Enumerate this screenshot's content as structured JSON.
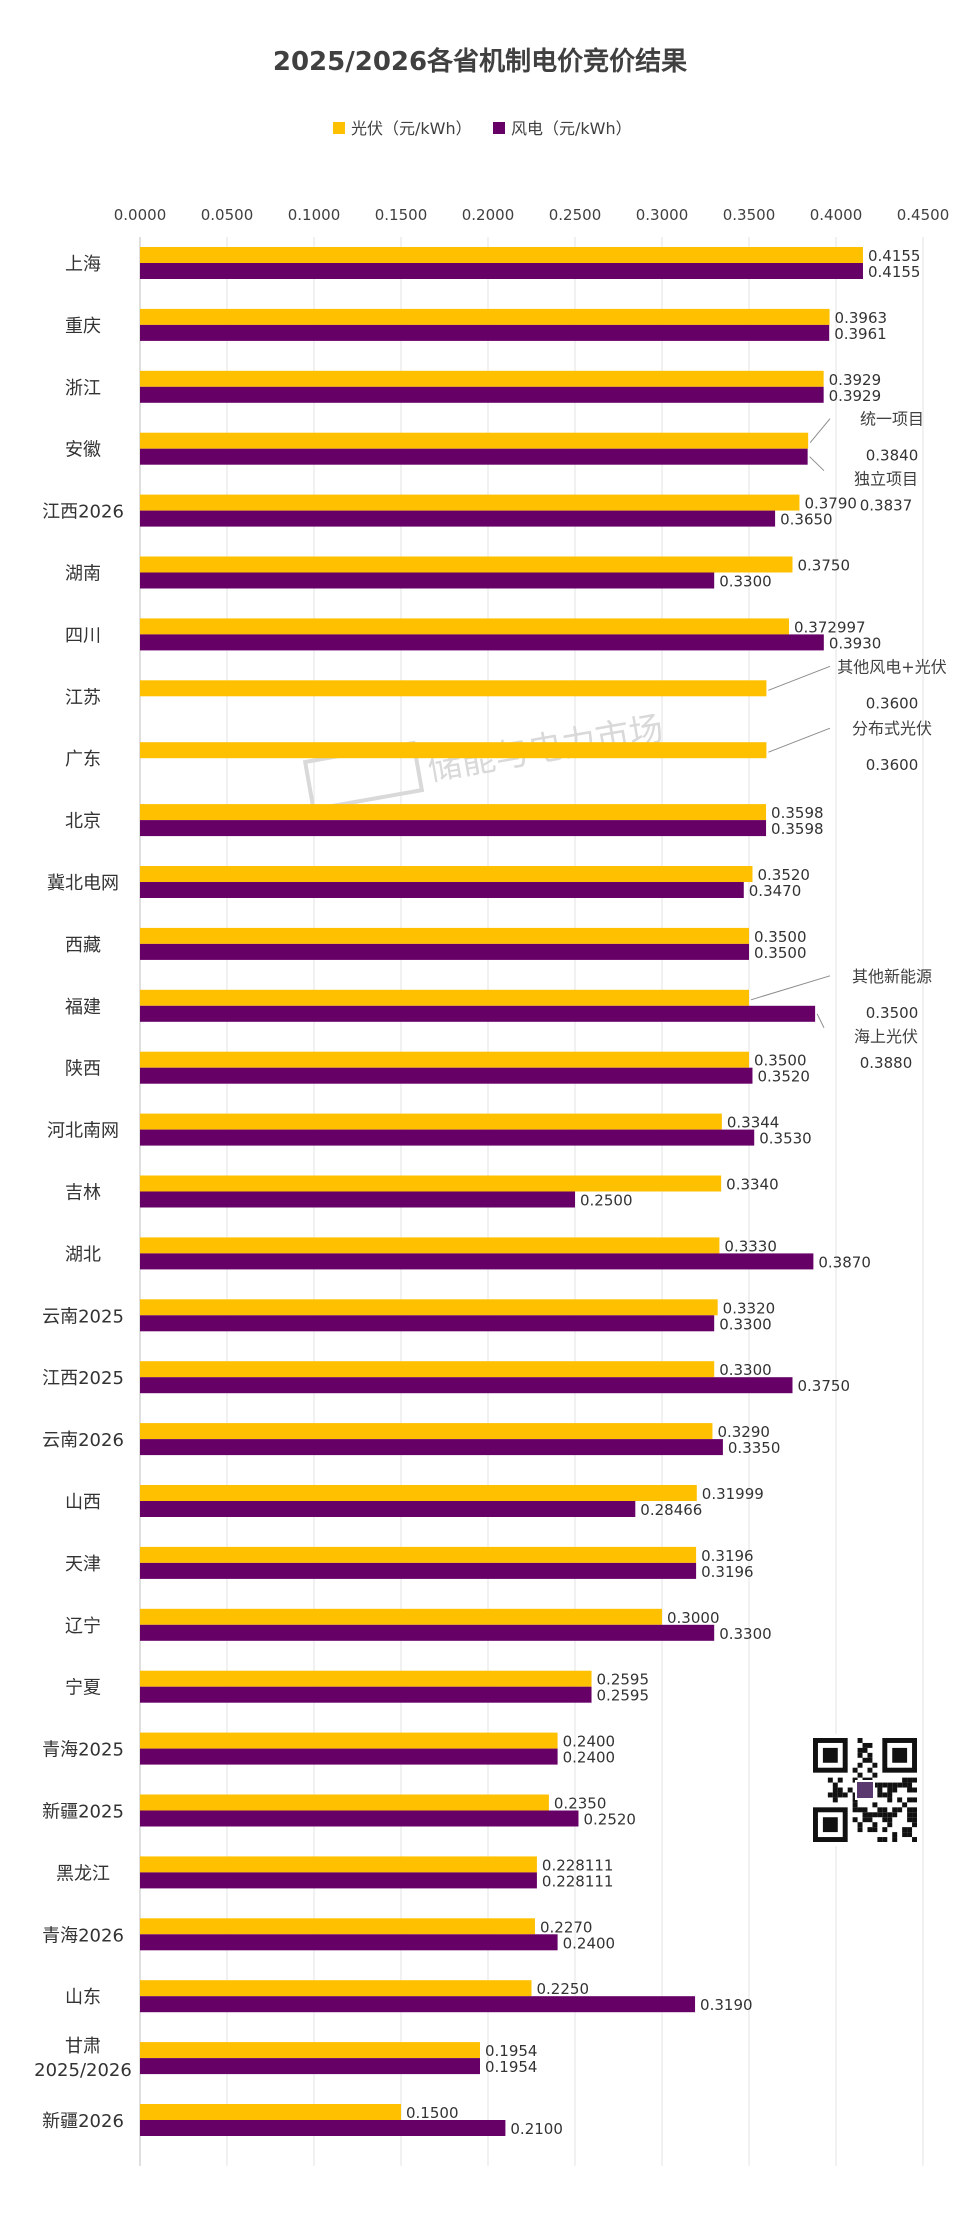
{
  "chart_data": {
    "type": "bar",
    "orientation": "horizontal",
    "title": "2025/2026各省机制电价竞价结果",
    "legend_position": "top",
    "xlim": [
      0,
      0.45
    ],
    "x_ticks": [
      "0.0000",
      "0.0500",
      "0.1000",
      "0.1500",
      "0.2000",
      "0.2500",
      "0.3000",
      "0.3500",
      "0.4000",
      "0.4500"
    ],
    "grid": true,
    "colors": {
      "pv": "#FFC000",
      "wind": "#660066"
    },
    "categories": [
      "上海",
      "重庆",
      "浙江",
      "安徽",
      "江西2026",
      "湖南",
      "四川",
      "江苏",
      "广东",
      "北京",
      "冀北电网",
      "西藏",
      "福建",
      "陕西",
      "河北南网",
      "吉林",
      "湖北",
      "云南2025",
      "江西2025",
      "云南2026",
      "山西",
      "天津",
      "辽宁",
      "宁夏",
      "青海2025",
      "新疆2025",
      "黑龙江",
      "青海2026",
      "山东",
      "甘肃 2025/2026",
      "新疆2026"
    ],
    "series": [
      {
        "name": "光伏（元/kWh）",
        "values": [
          0.4155,
          0.3963,
          0.3929,
          0.384,
          0.379,
          0.375,
          0.372997,
          0.36,
          0.36,
          0.3598,
          0.352,
          0.35,
          0.35,
          0.35,
          0.3344,
          0.334,
          0.333,
          0.332,
          0.33,
          0.329,
          0.31999,
          0.3196,
          0.3,
          0.2595,
          0.24,
          0.235,
          0.228111,
          0.227,
          0.225,
          0.1954,
          0.15
        ],
        "labels": [
          "0.4155",
          "0.3963",
          "0.3929",
          "0.3840",
          "0.3790",
          "0.3750",
          "0.372997",
          "0.3600",
          "0.3600",
          "0.3598",
          "0.3520",
          "0.3500",
          "0.3500",
          "0.3500",
          "0.3344",
          "0.3340",
          "0.3330",
          "0.3320",
          "0.3300",
          "0.3290",
          "0.31999",
          "0.3196",
          "0.3000",
          "0.2595",
          "0.2400",
          "0.2350",
          "0.228111",
          "0.2270",
          "0.2250",
          "0.1954",
          "0.1500"
        ]
      },
      {
        "name": "风电（元/kWh）",
        "values": [
          0.4155,
          0.3961,
          0.3929,
          0.3837,
          0.365,
          0.33,
          0.393,
          null,
          null,
          0.3598,
          0.347,
          0.35,
          0.388,
          0.352,
          0.353,
          0.25,
          0.387,
          0.33,
          0.375,
          0.335,
          0.28466,
          0.3196,
          0.33,
          0.2595,
          0.24,
          0.252,
          0.228111,
          0.24,
          0.319,
          0.1954,
          0.21
        ],
        "labels": [
          "0.4155",
          "0.3961",
          "0.3929",
          "0.3837",
          "0.3650",
          "0.3300",
          "0.3930",
          null,
          null,
          "0.3598",
          "0.3470",
          "0.3500",
          "0.3880",
          "0.3520",
          "0.3530",
          "0.2500",
          "0.3870",
          "0.3300",
          "0.3750",
          "0.3350",
          "0.28466",
          "0.3196",
          "0.3300",
          "0.2595",
          "0.2400",
          "0.2520",
          "0.228111",
          "0.2400",
          "0.3190",
          "0.1954",
          "0.2100"
        ]
      }
    ],
    "annotations": [
      {
        "category": "安徽",
        "series": 0,
        "text": "统一项目"
      },
      {
        "category": "安徽",
        "series": 1,
        "text": "独立项目"
      },
      {
        "category": "江苏",
        "series": 0,
        "text": "其他风电+光伏"
      },
      {
        "category": "广东",
        "series": 0,
        "text": "分布式光伏"
      },
      {
        "category": "福建",
        "series": 0,
        "text": "其他新能源"
      },
      {
        "category": "福建",
        "series": 1,
        "text": "海上光伏"
      }
    ],
    "watermark": "储能与电力市场"
  }
}
